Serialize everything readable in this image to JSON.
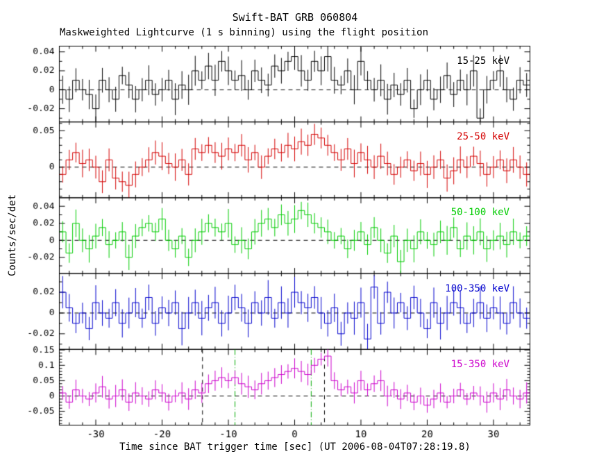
{
  "page": {
    "title": "Swift-BAT GRB 060804",
    "subtitle": "Maskweighted Lightcurve (1 s binning) using the flight position",
    "xlabel": "Time since BAT trigger time [sec] (UT 2006-08-04T07:28:19.8)",
    "ylabel": "Counts/sec/det"
  },
  "chart_data": {
    "type": "line",
    "style": "step-histogram lightcurve with vertical error bars, 5 stacked panels",
    "title": "Swift-BAT GRB 060804",
    "subtitle": "Maskweighted Lightcurve (1 s binning) using the flight position",
    "xlabel": "Time since BAT trigger time [sec] (UT 2006-08-04T07:28:19.8)",
    "ylabel": "Counts/sec/det",
    "trigger_utc": "2006-08-04T07:28:19.8",
    "bin_width_sec": 1,
    "x_start": -35,
    "x_step": 1,
    "n_bins": 71,
    "x_range": [
      -35.5,
      35.5
    ],
    "x_ticks": [
      -30,
      -20,
      -10,
      0,
      10,
      20,
      30
    ],
    "x_minor_step": 2,
    "grid": false,
    "legend_position": "top-right inside each panel",
    "series": [
      {
        "name": "15-25 keV",
        "color": "#000000",
        "ylim": [
          -0.034,
          0.046
        ],
        "yticks": [
          -0.02,
          0,
          0.02,
          0.04
        ],
        "ytick_minor": 0.01,
        "err": 0.013,
        "values": [
          0,
          -0.01,
          0.01,
          0,
          -0.005,
          -0.02,
          0.01,
          0,
          -0.01,
          0.015,
          0.005,
          -0.01,
          0,
          0.01,
          -0.005,
          0,
          0.01,
          -0.01,
          0.005,
          0,
          0.02,
          0.01,
          0.025,
          0.01,
          0.03,
          0.02,
          0.01,
          0.015,
          0,
          0.02,
          0.01,
          0.005,
          0.025,
          0.02,
          0.03,
          0.035,
          0.02,
          0.01,
          0.03,
          0.02,
          0.035,
          0.01,
          0.005,
          0.02,
          0,
          0.03,
          0.01,
          0,
          0.01,
          -0.01,
          0.005,
          -0.005,
          0.01,
          -0.02,
          0,
          0.01,
          -0.01,
          0,
          0.015,
          -0.005,
          0.01,
          0,
          0.02,
          -0.03,
          0,
          0.01,
          0.02,
          0,
          -0.01,
          0.01,
          0.005
        ]
      },
      {
        "name": "25-50 keV",
        "color": "#d40000",
        "ylim": [
          -0.042,
          0.062
        ],
        "yticks": [
          0,
          0.05
        ],
        "ytick_minor": 0.01,
        "err": 0.015,
        "values": [
          -0.01,
          0.01,
          0.02,
          0.005,
          0.01,
          0,
          -0.02,
          0.01,
          -0.015,
          -0.02,
          -0.025,
          -0.01,
          0,
          0.01,
          0.02,
          0.015,
          0.005,
          0,
          0.01,
          -0.01,
          0.025,
          0.02,
          0.03,
          0.02,
          0.015,
          0.025,
          0.02,
          0.03,
          0.01,
          0.02,
          0,
          0.015,
          0.025,
          0.02,
          0.03,
          0.025,
          0.035,
          0.03,
          0.045,
          0.04,
          0.03,
          0.02,
          0.01,
          0.025,
          0.005,
          0.02,
          0.01,
          0,
          0.015,
          0.005,
          -0.01,
          0,
          0.01,
          -0.005,
          0.005,
          -0.01,
          0,
          0.01,
          -0.015,
          -0.005,
          0.01,
          0,
          0.015,
          0.005,
          -0.01,
          0,
          0.01,
          -0.005,
          0.01,
          0,
          -0.01
        ]
      },
      {
        "name": "50-100 keV",
        "color": "#00cc00",
        "ylim": [
          -0.039,
          0.05
        ],
        "yticks": [
          -0.02,
          0,
          0.02,
          0.04
        ],
        "ytick_minor": 0.01,
        "err": 0.013,
        "values": [
          0.01,
          -0.015,
          0.02,
          0,
          -0.01,
          0.005,
          0.015,
          -0.005,
          0,
          0.01,
          -0.02,
          0.005,
          0.015,
          0.02,
          0.01,
          0.025,
          0,
          -0.01,
          0.005,
          -0.02,
          0,
          0.01,
          0.02,
          0.015,
          0.01,
          0.02,
          -0.005,
          0,
          -0.01,
          0.01,
          0.02,
          0.025,
          0.015,
          0.03,
          0.02,
          0.025,
          0.035,
          0.03,
          0.02,
          0.015,
          0.01,
          0,
          0.005,
          -0.01,
          0,
          0.01,
          -0.005,
          0.015,
          0,
          -0.015,
          0.005,
          -0.025,
          0,
          -0.01,
          0.01,
          0,
          -0.005,
          0.01,
          0,
          0.015,
          -0.01,
          0.005,
          0,
          0.01,
          -0.01,
          0,
          0.005,
          -0.005,
          0.01,
          0,
          0.005
        ]
      },
      {
        "name": "100-350 keV",
        "color": "#0000cd",
        "ylim": [
          -0.035,
          0.038
        ],
        "yticks": [
          -0.02,
          0,
          0.02
        ],
        "ytick_minor": 0.01,
        "err": 0.013,
        "values": [
          0.02,
          0.005,
          -0.01,
          0,
          -0.015,
          0.01,
          0,
          -0.005,
          0.01,
          -0.01,
          0,
          0.01,
          -0.005,
          0.015,
          -0.01,
          0.005,
          0,
          0.01,
          -0.015,
          0,
          0.01,
          -0.005,
          0.005,
          0.01,
          -0.01,
          0,
          0.015,
          0.005,
          -0.01,
          0.01,
          0,
          0.015,
          -0.005,
          0.01,
          0,
          0.02,
          0.01,
          0.005,
          0.015,
          0,
          -0.01,
          0.005,
          -0.02,
          0,
          -0.005,
          0.01,
          -0.025,
          0.025,
          -0.01,
          0.02,
          0,
          0.01,
          -0.005,
          0.015,
          0,
          -0.015,
          0.01,
          -0.01,
          0,
          0.01,
          0.005,
          -0.01,
          0,
          0.01,
          -0.005,
          0.005,
          0,
          -0.01,
          0.01,
          0,
          -0.005
        ]
      },
      {
        "name": "15-350 keV",
        "color": "#cc00cc",
        "ylim": [
          -0.095,
          0.152
        ],
        "yticks": [
          -0.05,
          0,
          0.05,
          0.1,
          0.15
        ],
        "ytick_minor": 0.01,
        "err": 0.028,
        "values": [
          0.01,
          -0.02,
          0.02,
          0,
          -0.01,
          0.01,
          0.03,
          -0.01,
          0,
          0.02,
          -0.02,
          0.01,
          0,
          -0.01,
          0.02,
          0.01,
          -0.02,
          0,
          0.01,
          -0.01,
          0.02,
          0.01,
          0.04,
          0.05,
          0.06,
          0.05,
          0.06,
          0.04,
          0.03,
          0.02,
          0.04,
          0.05,
          0.06,
          0.07,
          0.08,
          0.09,
          0.08,
          0.07,
          0.1,
          0.12,
          0.13,
          0.05,
          0.02,
          0.03,
          0.01,
          0.05,
          0.02,
          0.04,
          0.05,
          0,
          0.02,
          -0.01,
          0.01,
          -0.02,
          0,
          -0.03,
          -0.01,
          0.01,
          -0.02,
          0,
          0.02,
          -0.01,
          0.01,
          0,
          -0.02,
          0.01,
          -0.01,
          0.02,
          0,
          -0.01,
          0.01
        ]
      }
    ],
    "annotations": {
      "zero_line": {
        "style": "dashed",
        "color": "#000000",
        "y": 0,
        "panels": "all"
      },
      "vlines_bottom_panel": [
        {
          "t": -13.9,
          "style": "dashed",
          "color": "#000000"
        },
        {
          "t": 4.5,
          "style": "dashed",
          "color": "#000000"
        },
        {
          "t": -9.0,
          "style": "dash-dot",
          "color": "#00aa00"
        },
        {
          "t": 2.5,
          "style": "dash-dot",
          "color": "#00aa00"
        }
      ]
    }
  }
}
